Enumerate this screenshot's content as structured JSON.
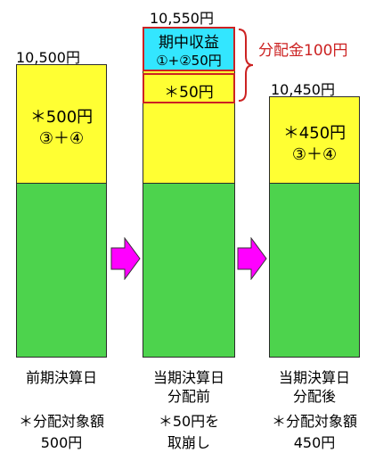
{
  "columns": [
    {
      "amount": "10,500円",
      "bars": {
        "yellow_text_1": "＊500円",
        "yellow_text_2": "③＋④"
      },
      "caption": [
        "前期決算日"
      ],
      "note": [
        "＊分配対象額",
        "500円"
      ]
    },
    {
      "amount": "10,550円",
      "bars": {
        "cyan_text_1": "期中収益",
        "cyan_text_2": "①+②50円",
        "yellow_text_1": "＊50円"
      },
      "caption": [
        "当期決算日",
        "分配前"
      ],
      "note": [
        "＊50円を",
        "取崩し"
      ]
    },
    {
      "amount": "10,450円",
      "bars": {
        "yellow_text_1": "＊450円",
        "yellow_text_2": "③＋④"
      },
      "caption": [
        "当期決算日",
        "分配後"
      ],
      "note": [
        "＊分配対象額",
        "450円"
      ]
    }
  ],
  "distribution_label": "分配金100円",
  "colors": {
    "yellow": "#ffff33",
    "green": "#4dd34d",
    "cyan": "#33e6ff",
    "arrow": "#ff00ff",
    "accent_red": "#cc2222"
  },
  "icons": [
    "right-arrow-icon",
    "right-arrow-icon",
    "curly-brace-icon"
  ]
}
